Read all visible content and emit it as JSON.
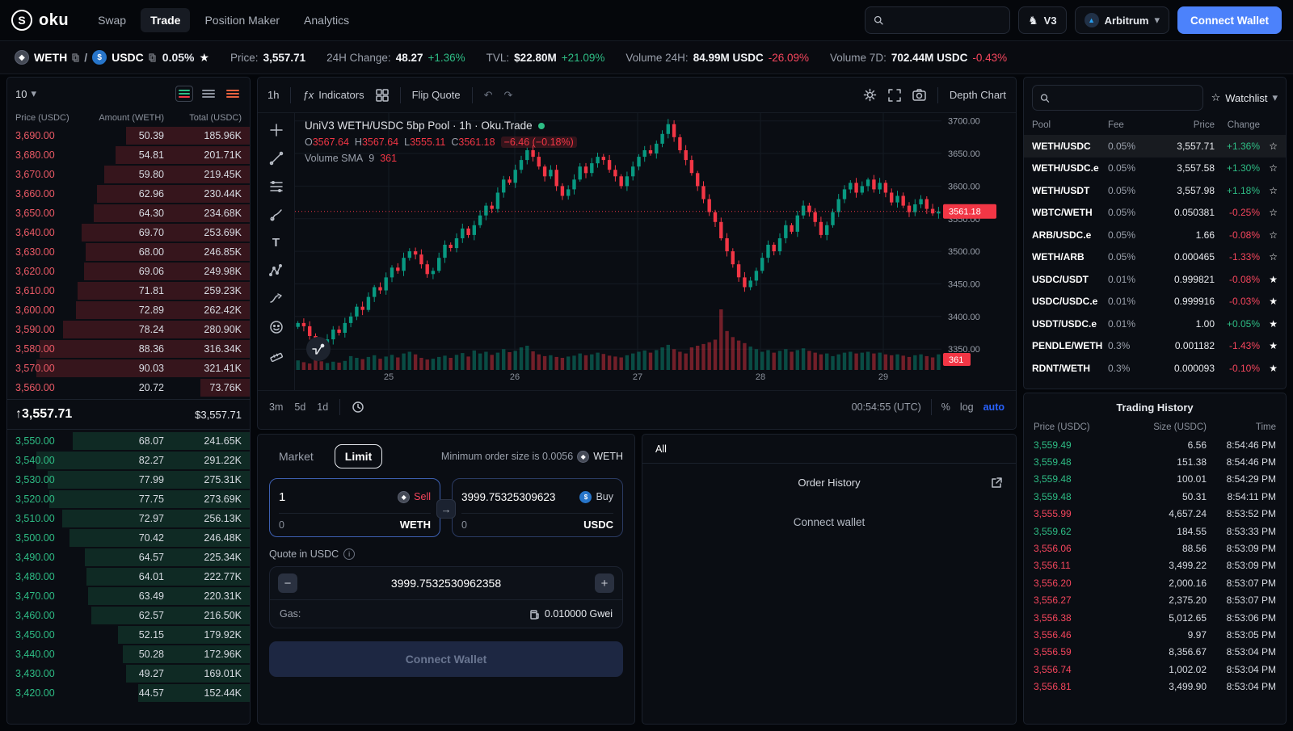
{
  "navbar": {
    "logo": "oku",
    "items": [
      {
        "label": "Swap",
        "active": false
      },
      {
        "label": "Trade",
        "active": true
      },
      {
        "label": "Position Maker",
        "active": false
      },
      {
        "label": "Analytics",
        "active": false
      }
    ],
    "search_placeholder": "",
    "version_badge": "V3",
    "network": "Arbitrum",
    "connect_wallet_label": "Connect Wallet"
  },
  "ticker": {
    "base": "WETH",
    "quote": "USDC",
    "fee": "0.05%",
    "stats": [
      {
        "label": "Price:",
        "value": "3,557.71",
        "delta": "",
        "dir": ""
      },
      {
        "label": "24H Change:",
        "value": "48.27",
        "delta": "+1.36%",
        "dir": "up"
      },
      {
        "label": "TVL:",
        "value": "$22.80M",
        "delta": "+21.09%",
        "dir": "up"
      },
      {
        "label": "Volume 24H:",
        "value": "84.99M USDC",
        "delta": "-26.09%",
        "dir": "down"
      },
      {
        "label": "Volume 7D:",
        "value": "702.44M USDC",
        "delta": "-0.43%",
        "dir": "down"
      }
    ]
  },
  "orderbook": {
    "rows_select": "10",
    "headers": [
      "Price (USDC)",
      "Amount (WETH)",
      "Total (USDC)"
    ],
    "asks": [
      [
        "3,690.00",
        "50.39",
        "185.96K"
      ],
      [
        "3,680.00",
        "54.81",
        "201.71K"
      ],
      [
        "3,670.00",
        "59.80",
        "219.45K"
      ],
      [
        "3,660.00",
        "62.96",
        "230.44K"
      ],
      [
        "3,650.00",
        "64.30",
        "234.68K"
      ],
      [
        "3,640.00",
        "69.70",
        "253.69K"
      ],
      [
        "3,630.00",
        "68.00",
        "246.85K"
      ],
      [
        "3,620.00",
        "69.06",
        "249.98K"
      ],
      [
        "3,610.00",
        "71.81",
        "259.23K"
      ],
      [
        "3,600.00",
        "72.89",
        "262.42K"
      ],
      [
        "3,590.00",
        "78.24",
        "280.90K"
      ],
      [
        "3,580.00",
        "88.36",
        "316.34K"
      ],
      [
        "3,570.00",
        "90.03",
        "321.41K"
      ],
      [
        "3,560.00",
        "20.72",
        "73.76K"
      ]
    ],
    "mid_arrow": "↑",
    "mid_price": "3,557.71",
    "mid_usd": "$3,557.71",
    "bids": [
      [
        "3,550.00",
        "68.07",
        "241.65K"
      ],
      [
        "3,540.00",
        "82.27",
        "291.22K"
      ],
      [
        "3,530.00",
        "77.99",
        "275.31K"
      ],
      [
        "3,520.00",
        "77.75",
        "273.69K"
      ],
      [
        "3,510.00",
        "72.97",
        "256.13K"
      ],
      [
        "3,500.00",
        "70.42",
        "246.48K"
      ],
      [
        "3,490.00",
        "64.57",
        "225.34K"
      ],
      [
        "3,480.00",
        "64.01",
        "222.77K"
      ],
      [
        "3,470.00",
        "63.49",
        "220.31K"
      ],
      [
        "3,460.00",
        "62.57",
        "216.50K"
      ],
      [
        "3,450.00",
        "52.15",
        "179.92K"
      ],
      [
        "3,440.00",
        "50.28",
        "172.96K"
      ],
      [
        "3,430.00",
        "49.27",
        "169.01K"
      ],
      [
        "3,420.00",
        "44.57",
        "152.44K"
      ]
    ]
  },
  "chart": {
    "interval": "1h",
    "indicators_label": "Indicators",
    "flip_quote_label": "Flip Quote",
    "depth_chart_label": "Depth Chart",
    "legend_title": "UniV3 WETH/USDC 5bp Pool · 1h · Oku.Trade",
    "ohlc_keys": {
      "o": "O",
      "h": "H",
      "l": "L",
      "c": "C"
    },
    "ohlc": {
      "o": "3567.64",
      "h": "3567.64",
      "l": "3555.11",
      "c": "3561.18",
      "change": "−6.46 (−0.18%)"
    },
    "volume_label": "Volume SMA",
    "volume_period": "9",
    "volume_value": "361",
    "ranges": [
      "3m",
      "5d",
      "1d"
    ],
    "clock": "00:54:55 (UTC)",
    "scale_buttons": [
      "%",
      "log",
      "auto"
    ]
  },
  "chart_data": {
    "type": "candlestick",
    "pair": "WETH/USDC",
    "interval": "1h",
    "last_price": 3561.18,
    "last_volume": 361,
    "y_ticks": [
      3350,
      3400,
      3450,
      3500,
      3550,
      3600,
      3650,
      3700
    ],
    "x_labels": [
      {
        "pos": 0.145,
        "label": "25"
      },
      {
        "pos": 0.34,
        "label": "26"
      },
      {
        "pos": 0.53,
        "label": "27"
      },
      {
        "pos": 0.72,
        "label": "28"
      },
      {
        "pos": 0.91,
        "label": "29"
      }
    ],
    "closes": [
      3390,
      3385,
      3370,
      3360,
      3355,
      3365,
      3380,
      3375,
      3390,
      3400,
      3415,
      3410,
      3430,
      3445,
      3440,
      3460,
      3475,
      3470,
      3490,
      3500,
      3495,
      3480,
      3465,
      3470,
      3490,
      3510,
      3505,
      3520,
      3535,
      3525,
      3540,
      3555,
      3570,
      3565,
      3590,
      3610,
      3605,
      3625,
      3640,
      3655,
      3645,
      3630,
      3615,
      3625,
      3600,
      3585,
      3595,
      3610,
      3630,
      3620,
      3635,
      3645,
      3640,
      3625,
      3615,
      3600,
      3615,
      3630,
      3645,
      3655,
      3650,
      3665,
      3680,
      3695,
      3675,
      3655,
      3640,
      3620,
      3600,
      3580,
      3560,
      3545,
      3520,
      3500,
      3480,
      3460,
      3445,
      3455,
      3470,
      3490,
      3510,
      3500,
      3520,
      3540,
      3530,
      3555,
      3570,
      3560,
      3545,
      3525,
      3540,
      3560,
      3580,
      3595,
      3605,
      3590,
      3600,
      3610,
      3595,
      3605,
      3590,
      3575,
      3585,
      3570,
      3560,
      3572,
      3580,
      3565,
      3558,
      3561.18
    ],
    "volumes": [
      220,
      180,
      150,
      240,
      200,
      160,
      190,
      170,
      210,
      320,
      280,
      250,
      300,
      340,
      260,
      310,
      350,
      290,
      380,
      420,
      360,
      280,
      240,
      260,
      300,
      330,
      280,
      350,
      390,
      310,
      450,
      380,
      420,
      350,
      400,
      480,
      410,
      440,
      520,
      560,
      430,
      360,
      320,
      340,
      300,
      280,
      310,
      330,
      380,
      340,
      360,
      400,
      370,
      330,
      310,
      290,
      340,
      380,
      420,
      450,
      400,
      460,
      520,
      580,
      480,
      420,
      380,
      520,
      560,
      600,
      640,
      700,
      1400,
      900,
      760,
      680,
      620,
      540,
      480,
      420,
      460,
      400,
      440,
      480,
      420,
      460,
      500,
      440,
      400,
      360,
      380,
      320,
      360,
      400,
      420,
      380,
      400,
      420,
      380,
      400,
      360,
      340,
      360,
      330,
      300,
      340,
      360,
      320,
      290,
      361
    ]
  },
  "trade_form": {
    "tabs": [
      {
        "label": "Market",
        "active": false
      },
      {
        "label": "Limit",
        "active": true
      }
    ],
    "min_order_text": "Minimum order size is 0.0056",
    "min_order_token": "WETH",
    "sell": {
      "value": "1",
      "label": "Sell",
      "balance": "0",
      "token": "WETH"
    },
    "buy": {
      "value": "3999.75325309623",
      "label": "Buy",
      "balance": "0",
      "token": "USDC"
    },
    "quote_label": "Quote in USDC",
    "limit_price": "3999.7532530962358",
    "minus": "−",
    "plus": "+",
    "gas_label": "Gas:",
    "gas_value": "0.010000 Gwei",
    "submit_label": "Connect Wallet"
  },
  "orders_panel": {
    "tab": "All",
    "title": "Order History",
    "empty_text": "Connect wallet"
  },
  "watchlist": {
    "title": "Watchlist",
    "headers": [
      "Pool",
      "Fee",
      "Price",
      "Change"
    ],
    "rows": [
      {
        "pool": "WETH/USDC",
        "fee": "0.05%",
        "price": "3,557.71",
        "change": "+1.36%",
        "dir": "up",
        "starred": false,
        "selected": true
      },
      {
        "pool": "WETH/USDC.e",
        "fee": "0.05%",
        "price": "3,557.58",
        "change": "+1.30%",
        "dir": "up",
        "starred": false,
        "selected": false
      },
      {
        "pool": "WETH/USDT",
        "fee": "0.05%",
        "price": "3,557.98",
        "change": "+1.18%",
        "dir": "up",
        "starred": false,
        "selected": false
      },
      {
        "pool": "WBTC/WETH",
        "fee": "0.05%",
        "price": "0.050381",
        "change": "-0.25%",
        "dir": "down",
        "starred": false,
        "selected": false
      },
      {
        "pool": "ARB/USDC.e",
        "fee": "0.05%",
        "price": "1.66",
        "change": "-0.08%",
        "dir": "down",
        "starred": false,
        "selected": false
      },
      {
        "pool": "WETH/ARB",
        "fee": "0.05%",
        "price": "0.000465",
        "change": "-1.33%",
        "dir": "down",
        "starred": false,
        "selected": false
      },
      {
        "pool": "USDC/USDT",
        "fee": "0.01%",
        "price": "0.999821",
        "change": "-0.08%",
        "dir": "down",
        "starred": true,
        "selected": false
      },
      {
        "pool": "USDC/USDC.e",
        "fee": "0.01%",
        "price": "0.999916",
        "change": "-0.03%",
        "dir": "down",
        "starred": true,
        "selected": false
      },
      {
        "pool": "USDT/USDC.e",
        "fee": "0.01%",
        "price": "1.00",
        "change": "+0.05%",
        "dir": "up",
        "starred": true,
        "selected": false
      },
      {
        "pool": "PENDLE/WETH",
        "fee": "0.3%",
        "price": "0.001182",
        "change": "-1.43%",
        "dir": "down",
        "starred": true,
        "selected": false
      },
      {
        "pool": "RDNT/WETH",
        "fee": "0.3%",
        "price": "0.000093",
        "change": "-0.10%",
        "dir": "down",
        "starred": true,
        "selected": false
      }
    ]
  },
  "trading_history": {
    "title": "Trading History",
    "headers": [
      "Price (USDC)",
      "Size (USDC)",
      "Time"
    ],
    "rows": [
      {
        "price": "3,559.49",
        "size": "6.56",
        "time": "8:54:46 PM",
        "dir": "up"
      },
      {
        "price": "3,559.48",
        "size": "151.38",
        "time": "8:54:46 PM",
        "dir": "up"
      },
      {
        "price": "3,559.48",
        "size": "100.01",
        "time": "8:54:29 PM",
        "dir": "up"
      },
      {
        "price": "3,559.48",
        "size": "50.31",
        "time": "8:54:11 PM",
        "dir": "up"
      },
      {
        "price": "3,555.99",
        "size": "4,657.24",
        "time": "8:53:52 PM",
        "dir": "down"
      },
      {
        "price": "3,559.62",
        "size": "184.55",
        "time": "8:53:33 PM",
        "dir": "up"
      },
      {
        "price": "3,556.06",
        "size": "88.56",
        "time": "8:53:09 PM",
        "dir": "down"
      },
      {
        "price": "3,556.11",
        "size": "3,499.22",
        "time": "8:53:09 PM",
        "dir": "down"
      },
      {
        "price": "3,556.20",
        "size": "2,000.16",
        "time": "8:53:07 PM",
        "dir": "down"
      },
      {
        "price": "3,556.27",
        "size": "2,375.20",
        "time": "8:53:07 PM",
        "dir": "down"
      },
      {
        "price": "3,556.38",
        "size": "5,012.65",
        "time": "8:53:06 PM",
        "dir": "down"
      },
      {
        "price": "3,556.46",
        "size": "9.97",
        "time": "8:53:05 PM",
        "dir": "down"
      },
      {
        "price": "3,556.59",
        "size": "8,356.67",
        "time": "8:53:04 PM",
        "dir": "down"
      },
      {
        "price": "3,556.74",
        "size": "1,002.02",
        "time": "8:53:04 PM",
        "dir": "down"
      },
      {
        "price": "3,556.81",
        "size": "3,499.90",
        "time": "8:53:04 PM",
        "dir": "down"
      }
    ]
  }
}
